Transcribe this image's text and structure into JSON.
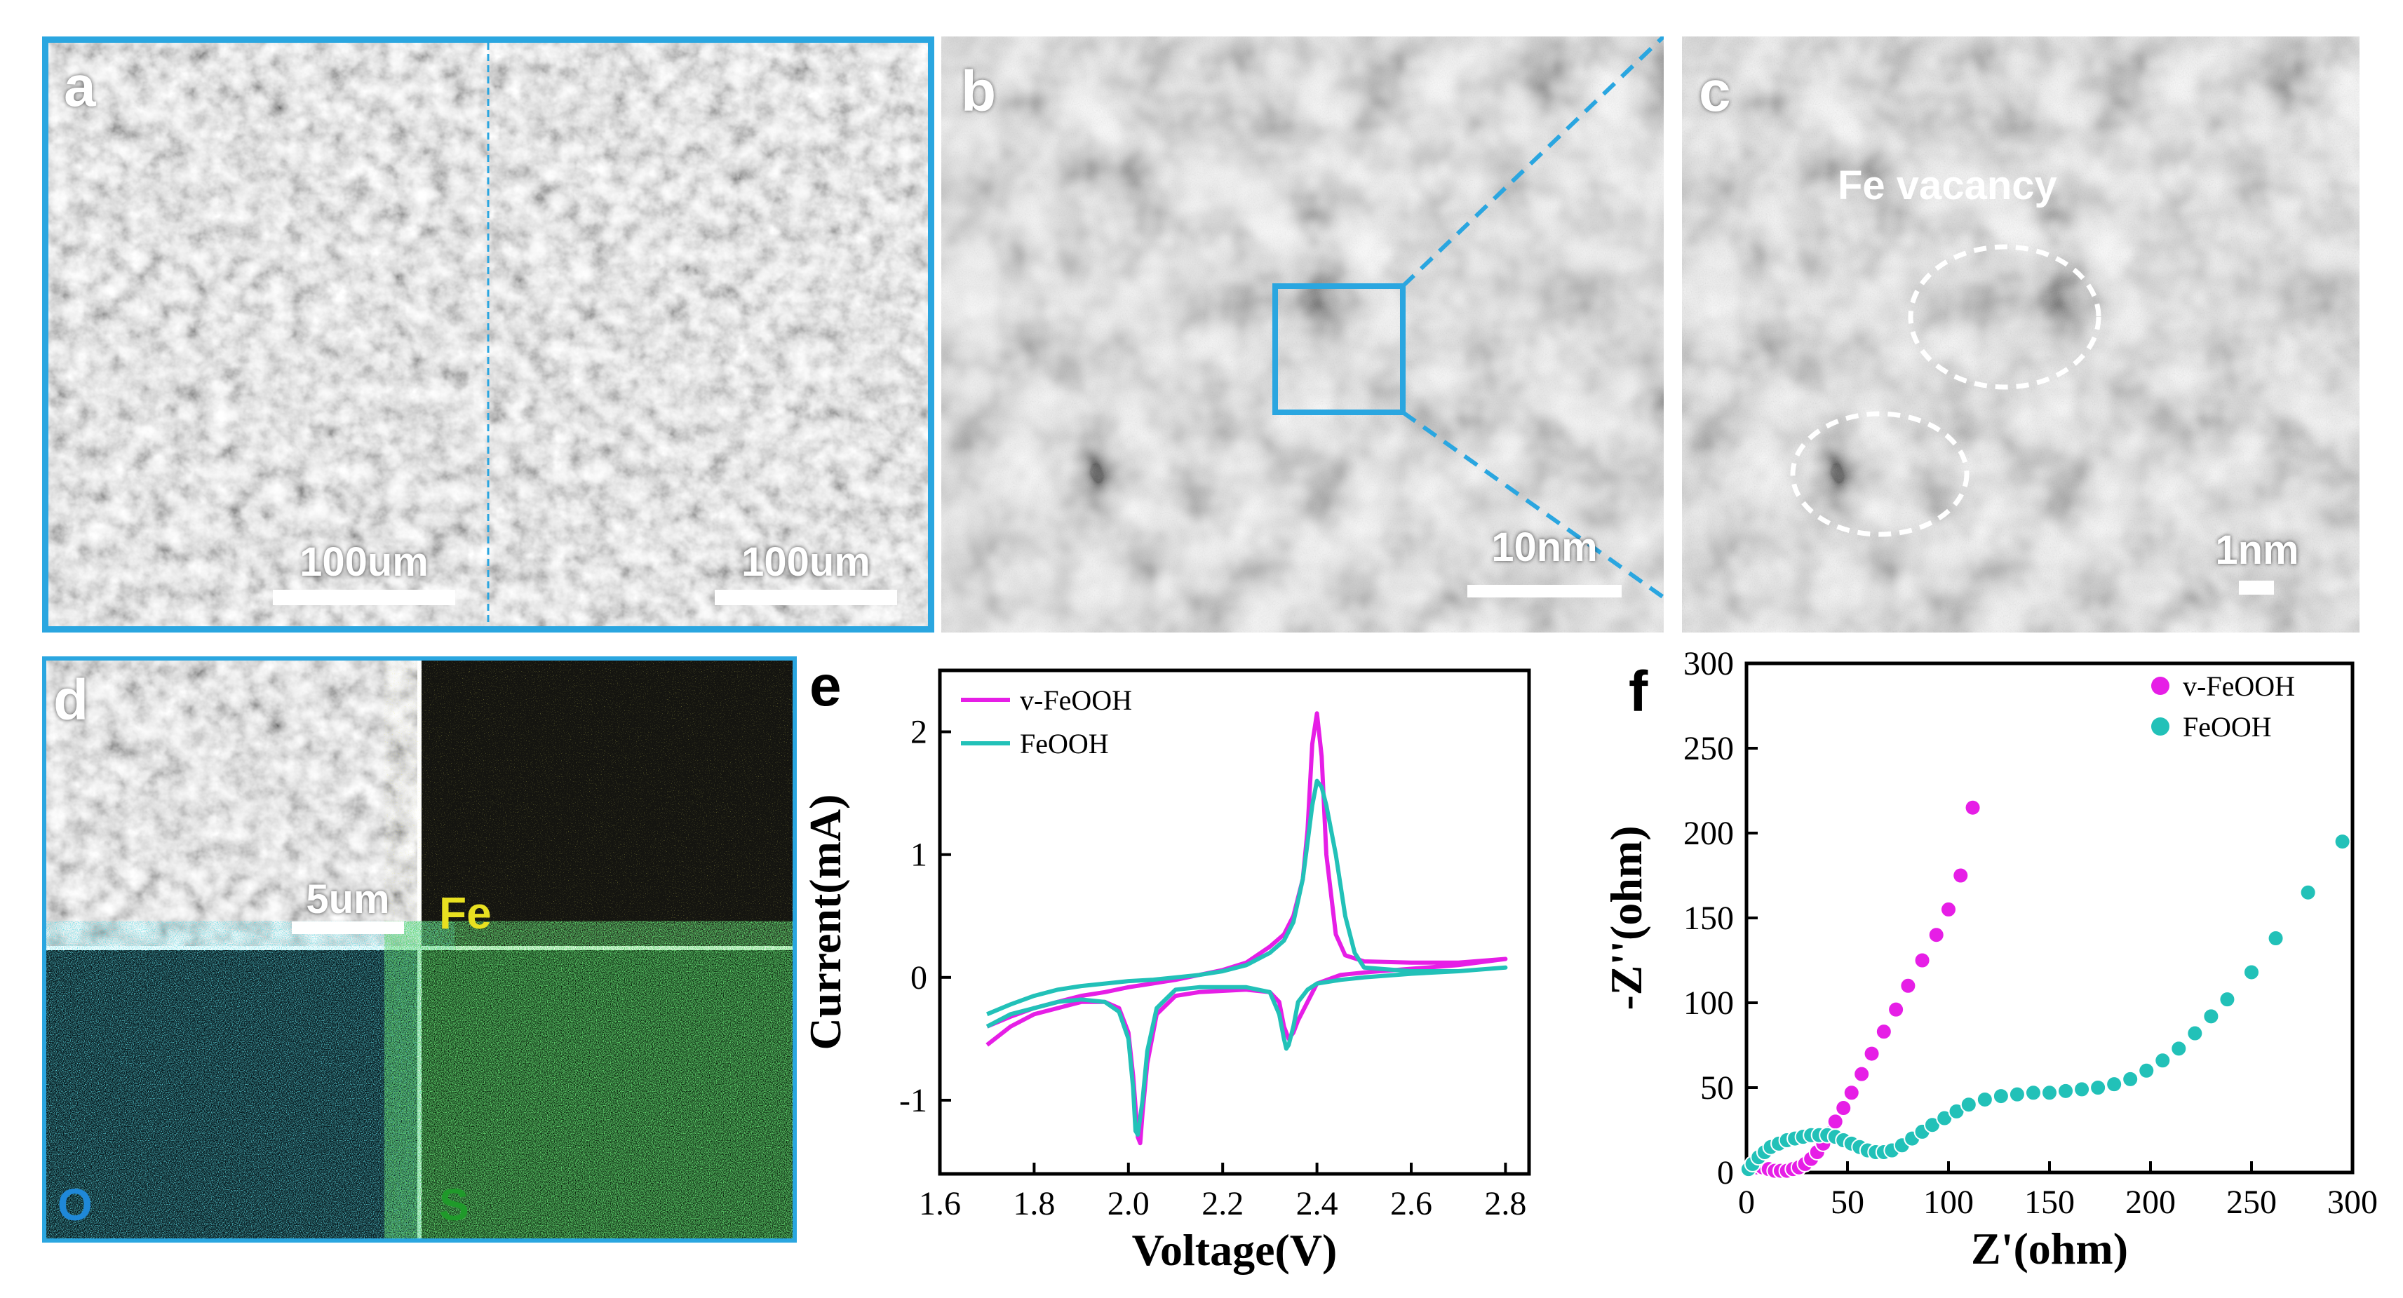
{
  "panels": {
    "a": {
      "letter": "a",
      "scale_left": "100um",
      "scale_right": "100um"
    },
    "b": {
      "letter": "b",
      "scale": "10nm"
    },
    "c": {
      "letter": "c",
      "scale": "1nm",
      "annotation": "Fe vacancy"
    },
    "d": {
      "letter": "d",
      "scale": "5um",
      "maps": [
        "Fe",
        "O",
        "S"
      ]
    },
    "e": {
      "letter": "e"
    },
    "f": {
      "letter": "f"
    }
  },
  "colors": {
    "frame": "#2aa6e0",
    "v_feooh": "#e61ee6",
    "feooh": "#22c1b8",
    "fe_map": "#d6d020",
    "o_map": "#1fb8cc",
    "s_map": "#1fa82a"
  },
  "chart_data": [
    {
      "panel": "e",
      "type": "line",
      "xlabel": "Voltage(V)",
      "ylabel": "Current(mA)",
      "xlim": [
        1.6,
        2.85
      ],
      "ylim": [
        -1.6,
        2.5
      ],
      "xticks": [
        "1.6",
        "1.8",
        "2.0",
        "2.2",
        "2.4",
        "2.6",
        "2.8"
      ],
      "yticks": [
        "-1",
        "0",
        "1",
        "2"
      ],
      "legend_position": "top-left",
      "series": [
        {
          "name": "v-FeOOH",
          "color": "#e61ee6",
          "x": [
            1.7,
            1.75,
            1.8,
            1.85,
            1.9,
            1.95,
            2.0,
            2.05,
            2.1,
            2.15,
            2.2,
            2.25,
            2.3,
            2.33,
            2.35,
            2.37,
            2.38,
            2.39,
            2.4,
            2.41,
            2.42,
            2.44,
            2.46,
            2.5,
            2.6,
            2.7,
            2.8,
            2.8,
            2.7,
            2.6,
            2.5,
            2.45,
            2.4,
            2.38,
            2.36,
            2.35,
            2.34,
            2.33,
            2.32,
            2.3,
            2.25,
            2.15,
            2.1,
            2.06,
            2.04,
            2.03,
            2.025,
            2.02,
            2.01,
            2.0,
            1.98,
            1.95,
            1.9,
            1.85,
            1.8,
            1.75,
            1.7
          ],
          "y": [
            -0.4,
            -0.32,
            -0.25,
            -0.2,
            -0.15,
            -0.12,
            -0.08,
            -0.05,
            -0.02,
            0.02,
            0.06,
            0.12,
            0.25,
            0.35,
            0.5,
            0.8,
            1.2,
            1.9,
            2.15,
            1.8,
            1.0,
            0.35,
            0.18,
            0.13,
            0.12,
            0.12,
            0.15,
            0.15,
            0.1,
            0.07,
            0.04,
            0.02,
            -0.05,
            -0.2,
            -0.35,
            -0.45,
            -0.5,
            -0.4,
            -0.2,
            -0.12,
            -0.1,
            -0.12,
            -0.15,
            -0.3,
            -0.7,
            -1.1,
            -1.35,
            -1.3,
            -0.8,
            -0.45,
            -0.25,
            -0.2,
            -0.2,
            -0.25,
            -0.3,
            -0.4,
            -0.55
          ]
        },
        {
          "name": "FeOOH",
          "color": "#22c1b8",
          "x": [
            1.7,
            1.75,
            1.8,
            1.85,
            1.9,
            1.95,
            2.0,
            2.05,
            2.1,
            2.15,
            2.2,
            2.25,
            2.3,
            2.33,
            2.35,
            2.37,
            2.38,
            2.39,
            2.4,
            2.41,
            2.42,
            2.44,
            2.46,
            2.48,
            2.5,
            2.6,
            2.7,
            2.8,
            2.8,
            2.7,
            2.6,
            2.5,
            2.45,
            2.4,
            2.38,
            2.36,
            2.35,
            2.34,
            2.335,
            2.33,
            2.32,
            2.3,
            2.25,
            2.15,
            2.1,
            2.06,
            2.04,
            2.03,
            2.02,
            2.015,
            2.01,
            2.0,
            1.98,
            1.95,
            1.9,
            1.85,
            1.8,
            1.75,
            1.7
          ],
          "y": [
            -0.3,
            -0.22,
            -0.15,
            -0.1,
            -0.07,
            -0.05,
            -0.03,
            -0.02,
            0.0,
            0.02,
            0.05,
            0.1,
            0.2,
            0.3,
            0.45,
            0.8,
            1.1,
            1.4,
            1.6,
            1.55,
            1.4,
            1.0,
            0.5,
            0.2,
            0.08,
            0.05,
            0.05,
            0.08,
            0.08,
            0.05,
            0.03,
            0.0,
            -0.02,
            -0.05,
            -0.1,
            -0.2,
            -0.4,
            -0.55,
            -0.58,
            -0.5,
            -0.3,
            -0.12,
            -0.08,
            -0.08,
            -0.1,
            -0.25,
            -0.6,
            -1.0,
            -1.28,
            -1.25,
            -0.9,
            -0.5,
            -0.28,
            -0.2,
            -0.18,
            -0.2,
            -0.25,
            -0.3,
            -0.4
          ]
        }
      ]
    },
    {
      "panel": "f",
      "type": "scatter",
      "xlabel": "Z'(ohm)",
      "ylabel": "-Z''(ohm)",
      "xlim": [
        0,
        300
      ],
      "ylim": [
        0,
        300
      ],
      "xticks": [
        "0",
        "50",
        "100",
        "150",
        "200",
        "250",
        "300"
      ],
      "yticks": [
        "0",
        "50",
        "100",
        "150",
        "200",
        "250",
        "300"
      ],
      "legend_position": "top-right",
      "series": [
        {
          "name": "v-FeOOH",
          "color": "#e61ee6",
          "x": [
            2,
            5,
            8,
            11,
            14,
            17,
            20,
            23,
            26,
            29,
            32,
            35,
            38,
            41,
            44,
            48,
            52,
            57,
            62,
            68,
            74,
            80,
            87,
            94,
            100,
            106,
            112
          ],
          "y": [
            2,
            3,
            3,
            2,
            1,
            1,
            1,
            2,
            3,
            5,
            8,
            12,
            17,
            23,
            30,
            38,
            47,
            58,
            70,
            83,
            96,
            110,
            125,
            140,
            155,
            175,
            215
          ]
        },
        {
          "name": "FeOOH",
          "color": "#22c1b8",
          "x": [
            1,
            3,
            6,
            9,
            12,
            16,
            20,
            24,
            28,
            32,
            36,
            40,
            44,
            48,
            52,
            56,
            60,
            64,
            68,
            72,
            77,
            82,
            87,
            92,
            98,
            104,
            110,
            118,
            126,
            134,
            142,
            150,
            158,
            166,
            174,
            182,
            190,
            198,
            206,
            214,
            222,
            230,
            238,
            250,
            262,
            278,
            295
          ],
          "y": [
            2,
            5,
            9,
            12,
            15,
            17,
            19,
            20,
            21,
            22,
            22,
            22,
            21,
            19,
            17,
            15,
            13,
            12,
            12,
            13,
            16,
            20,
            24,
            28,
            32,
            36,
            40,
            43,
            45,
            46,
            47,
            47,
            48,
            49,
            50,
            52,
            55,
            60,
            66,
            73,
            82,
            92,
            102,
            118,
            138,
            165,
            195
          ]
        }
      ]
    }
  ]
}
